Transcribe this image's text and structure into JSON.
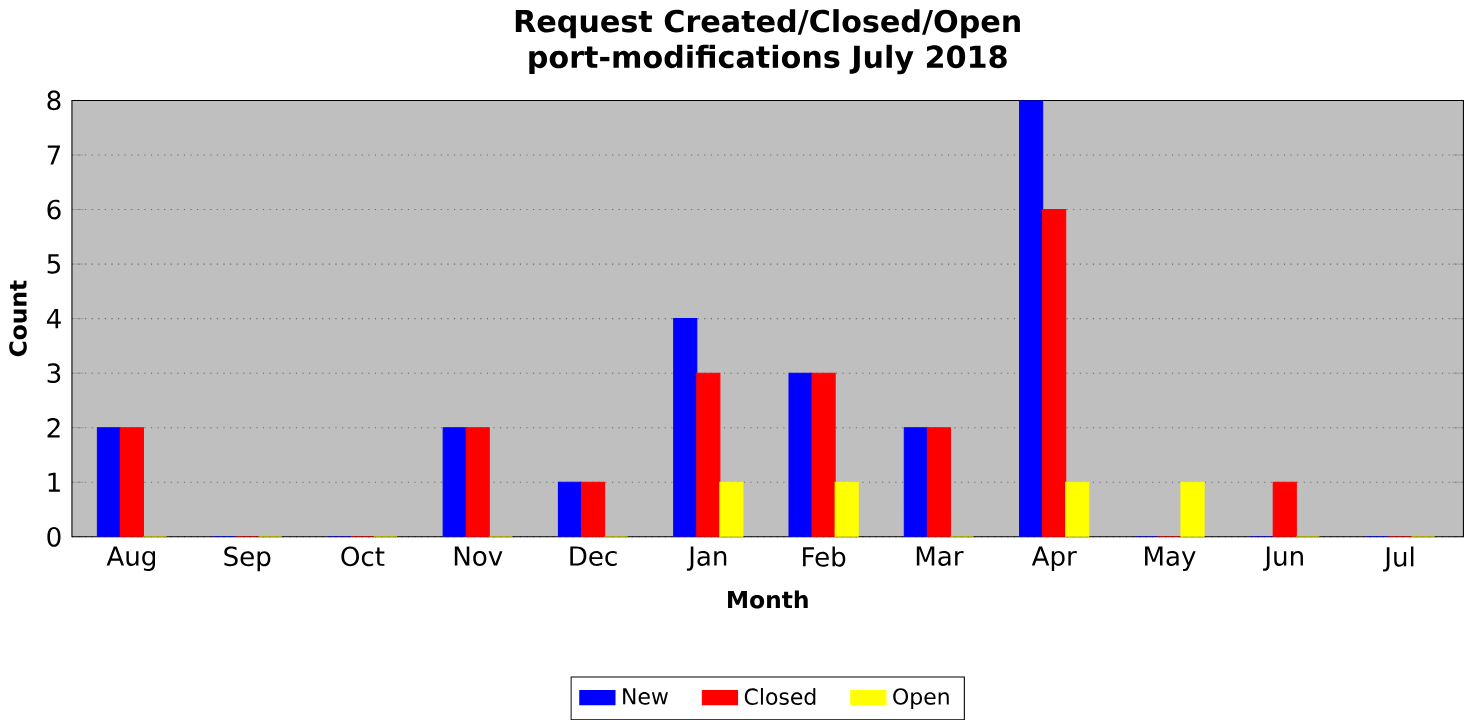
{
  "chart_data": {
    "type": "bar",
    "title": "Request Created/Closed/Open",
    "subtitle": "port-modifications July 2018",
    "xlabel": "Month",
    "ylabel": "Count",
    "categories": [
      "Aug",
      "Sep",
      "Oct",
      "Nov",
      "Dec",
      "Jan",
      "Feb",
      "Mar",
      "Apr",
      "May",
      "Jun",
      "Jul"
    ],
    "series": [
      {
        "name": "New",
        "color": "#0000ff",
        "values": [
          2,
          0,
          0,
          2,
          1,
          4,
          3,
          2,
          8,
          0,
          0,
          0
        ]
      },
      {
        "name": "Closed",
        "color": "#ff0000",
        "values": [
          2,
          0,
          0,
          2,
          1,
          3,
          3,
          2,
          6,
          0,
          1,
          0
        ]
      },
      {
        "name": "Open",
        "color": "#ffff00",
        "values": [
          0,
          0,
          0,
          0,
          0,
          1,
          1,
          0,
          1,
          1,
          0,
          0
        ]
      }
    ],
    "ylim": [
      0,
      8
    ],
    "yticks": [
      0,
      1,
      2,
      3,
      4,
      5,
      6,
      7,
      8
    ],
    "grid": "y",
    "legend": "bottom"
  }
}
